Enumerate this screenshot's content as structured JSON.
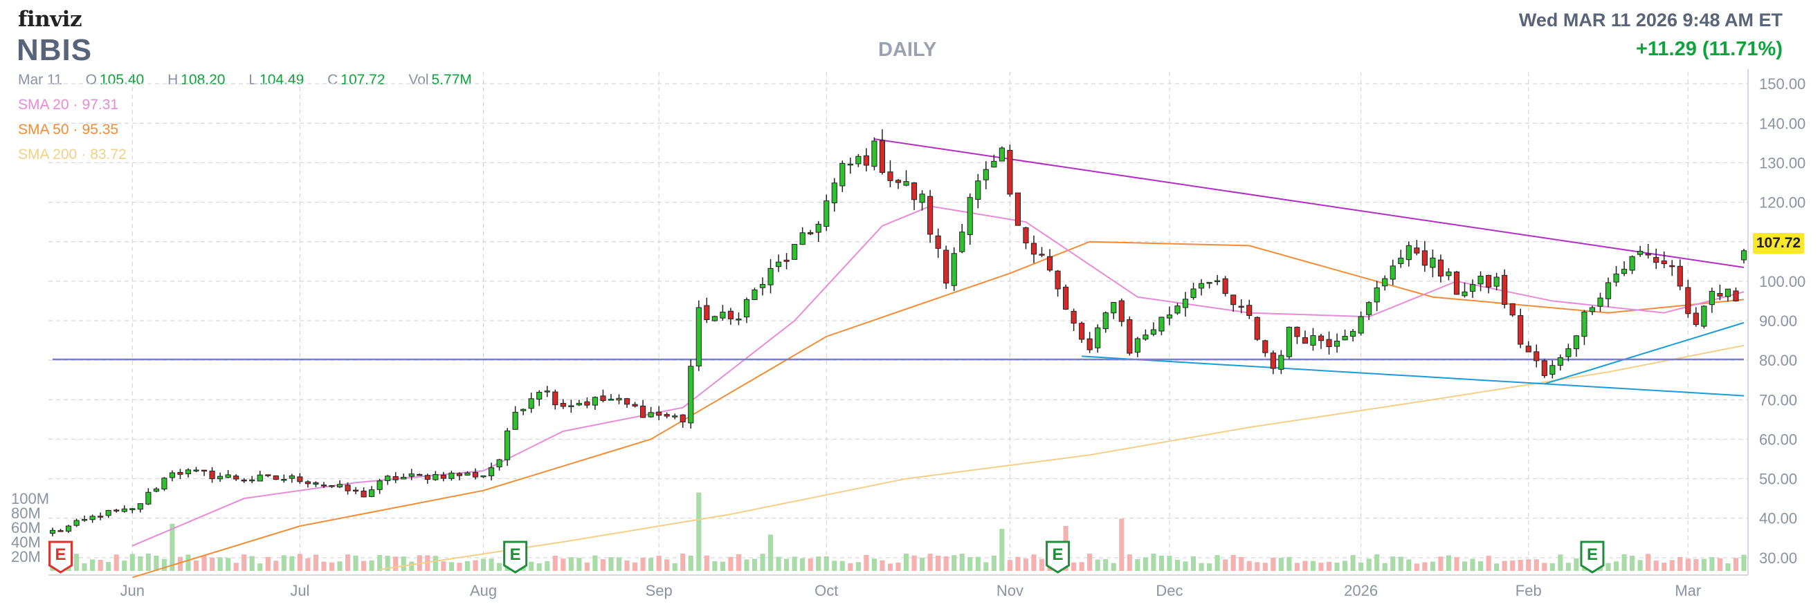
{
  "header": {
    "brand": "finviz",
    "ticker": "NBIS",
    "period": "DAILY",
    "datetime": "Wed MAR 11 2026 9:48 AM ET",
    "change": "+11.29 (11.71%)"
  },
  "ohlc": {
    "date": "Mar 11",
    "open_label": "O",
    "open": "105.40",
    "high_label": "H",
    "high": "108.20",
    "low_label": "L",
    "low": "104.49",
    "close_label": "C",
    "close": "107.72",
    "vol_label": "Vol",
    "vol": "5.77M"
  },
  "sma": [
    {
      "label": "SMA 20",
      "value": "97.31",
      "color": "#e88bd6"
    },
    {
      "label": "SMA 50",
      "value": "95.35",
      "color": "#f28c36"
    },
    {
      "label": "SMA 200",
      "value": "83.72",
      "color": "#f2d08a"
    }
  ],
  "last_price_tag": "107.72",
  "colors": {
    "up": "#2fc22f",
    "down": "#d42a2a",
    "sma20": "#e88bd6",
    "sma50": "#f28c36",
    "sma200": "#f2d08a",
    "trend_resistance": "#b22cc4",
    "trend_support": "#1a9bd7",
    "horizontal_support": "#7c7cc8",
    "vol_up": "#a9dba9",
    "vol_down": "#f5b0b0"
  },
  "icons": [
    "earnings-E-icon",
    "earnings-E-icon",
    "earnings-E-icon",
    "earnings-E-icon"
  ],
  "chart_data": {
    "type": "candlestick",
    "title": "NBIS",
    "period": "DAILY",
    "ylim": [
      27,
      153
    ],
    "y_ticks": [
      "150.00",
      "140.00",
      "130.00",
      "120.00",
      "110.00",
      "100.00",
      "90.00",
      "80.00",
      "70.00",
      "60.00",
      "50.00",
      "40.00",
      "30.00"
    ],
    "x_ticks": [
      "Jun",
      "Jul",
      "Aug",
      "Sep",
      "Oct",
      "Nov",
      "Dec",
      "2026",
      "Feb",
      "Mar"
    ],
    "volume_ticks": [
      "100M",
      "80M",
      "60M",
      "40M",
      "20M"
    ],
    "volume_max_m": 120,
    "grid": true,
    "ohlc_anchors": [
      {
        "date": "2025-05-20",
        "close": 37
      },
      {
        "date": "2025-05-27",
        "close": 41
      },
      {
        "date": "2025-06-02",
        "close": 42
      },
      {
        "date": "2025-06-09",
        "close": 52
      },
      {
        "date": "2025-06-20",
        "close": 50
      },
      {
        "date": "2025-07-01",
        "close": 50
      },
      {
        "date": "2025-07-11",
        "close": 46
      },
      {
        "date": "2025-07-16",
        "close": 50
      },
      {
        "date": "2025-07-25",
        "close": 51
      },
      {
        "date": "2025-08-01",
        "close": 51
      },
      {
        "date": "2025-08-05",
        "close": 55
      },
      {
        "date": "2025-08-07",
        "close": 67
      },
      {
        "date": "2025-08-12",
        "close": 73
      },
      {
        "date": "2025-08-15",
        "close": 69
      },
      {
        "date": "2025-08-25",
        "close": 70
      },
      {
        "date": "2025-08-29",
        "close": 67
      },
      {
        "date": "2025-09-05",
        "close": 65
      },
      {
        "date": "2025-09-09",
        "close": 92
      },
      {
        "date": "2025-09-15",
        "close": 90
      },
      {
        "date": "2025-09-22",
        "close": 102
      },
      {
        "date": "2025-09-29",
        "close": 112
      },
      {
        "date": "2025-10-03",
        "close": 128
      },
      {
        "date": "2025-10-09",
        "close": 133
      },
      {
        "date": "2025-10-13",
        "close": 127
      },
      {
        "date": "2025-10-17",
        "close": 120
      },
      {
        "date": "2025-10-22",
        "close": 100
      },
      {
        "date": "2025-10-27",
        "close": 122
      },
      {
        "date": "2025-10-31",
        "close": 131
      },
      {
        "date": "2025-11-04",
        "close": 112
      },
      {
        "date": "2025-11-07",
        "close": 108
      },
      {
        "date": "2025-11-12",
        "close": 92
      },
      {
        "date": "2025-11-17",
        "close": 82
      },
      {
        "date": "2025-11-20",
        "close": 96
      },
      {
        "date": "2025-11-24",
        "close": 83
      },
      {
        "date": "2025-12-01",
        "close": 92
      },
      {
        "date": "2025-12-05",
        "close": 101
      },
      {
        "date": "2025-12-09",
        "close": 98
      },
      {
        "date": "2025-12-15",
        "close": 90
      },
      {
        "date": "2025-12-18",
        "close": 78
      },
      {
        "date": "2025-12-22",
        "close": 87
      },
      {
        "date": "2025-12-29",
        "close": 85
      },
      {
        "date": "2026-01-02",
        "close": 90
      },
      {
        "date": "2026-01-08",
        "close": 105
      },
      {
        "date": "2026-01-13",
        "close": 108
      },
      {
        "date": "2026-01-20",
        "close": 98
      },
      {
        "date": "2026-01-27",
        "close": 100
      },
      {
        "date": "2026-01-30",
        "close": 85
      },
      {
        "date": "2026-02-04",
        "close": 76
      },
      {
        "date": "2026-02-06",
        "close": 80
      },
      {
        "date": "2026-02-12",
        "close": 95
      },
      {
        "date": "2026-02-17",
        "close": 102
      },
      {
        "date": "2026-02-20",
        "close": 107
      },
      {
        "date": "2026-02-26",
        "close": 104
      },
      {
        "date": "2026-03-03",
        "close": 87
      },
      {
        "date": "2026-03-05",
        "close": 97
      },
      {
        "date": "2026-03-10",
        "close": 96
      },
      {
        "date": "2026-03-11",
        "close": 107.72
      }
    ],
    "last_candle": {
      "date": "Mar 11",
      "open": 105.4,
      "high": 108.2,
      "low": 104.49,
      "close": 107.72,
      "volume": "5.77M"
    },
    "volume_spikes": [
      {
        "date": "2025-06-09",
        "volume_m": 65
      },
      {
        "date": "2025-09-09",
        "volume_m": 108
      },
      {
        "date": "2025-09-22",
        "volume_m": 50
      },
      {
        "date": "2025-10-31",
        "volume_m": 58
      },
      {
        "date": "2025-11-12",
        "volume_m": 62
      },
      {
        "date": "2025-11-21",
        "volume_m": 72
      }
    ],
    "sma": {
      "sma20": [
        [
          "2025-06-01",
          33
        ],
        [
          "2025-06-20",
          45
        ],
        [
          "2025-07-10",
          49
        ],
        [
          "2025-08-01",
          52
        ],
        [
          "2025-08-15",
          62
        ],
        [
          "2025-09-05",
          68
        ],
        [
          "2025-09-25",
          90
        ],
        [
          "2025-10-10",
          114
        ],
        [
          "2025-10-20",
          119
        ],
        [
          "2025-11-05",
          115
        ],
        [
          "2025-11-25",
          96
        ],
        [
          "2025-12-15",
          92
        ],
        [
          "2026-01-05",
          91
        ],
        [
          "2026-01-20",
          100
        ],
        [
          "2026-02-05",
          95
        ],
        [
          "2026-02-25",
          92
        ],
        [
          "2026-03-11",
          97.31
        ]
      ],
      "sma50": [
        [
          "2025-06-01",
          25
        ],
        [
          "2025-07-01",
          38
        ],
        [
          "2025-08-01",
          47
        ],
        [
          "2025-09-01",
          60
        ],
        [
          "2025-10-01",
          86
        ],
        [
          "2025-11-01",
          102
        ],
        [
          "2025-11-15",
          110
        ],
        [
          "2025-12-15",
          109
        ],
        [
          "2026-01-15",
          96
        ],
        [
          "2026-02-15",
          92
        ],
        [
          "2026-03-11",
          95.35
        ]
      ],
      "sma200": [
        [
          "2025-07-15",
          27
        ],
        [
          "2025-08-15",
          34
        ],
        [
          "2025-09-15",
          41
        ],
        [
          "2025-10-15",
          50
        ],
        [
          "2025-11-15",
          56
        ],
        [
          "2025-12-15",
          63
        ],
        [
          "2026-01-15",
          70
        ],
        [
          "2026-02-15",
          77
        ],
        [
          "2026-03-11",
          83.72
        ]
      ]
    },
    "trendlines": [
      {
        "name": "resistance",
        "from": [
          "2025-10-09",
          136
        ],
        "to": [
          "2026-03-11",
          103.5
        ]
      },
      {
        "name": "support-lower",
        "from": [
          "2025-11-14",
          81
        ],
        "to": [
          "2026-03-11",
          71
        ]
      },
      {
        "name": "support-rising",
        "from": [
          "2026-02-04",
          74
        ],
        "to": [
          "2026-03-11",
          89.5
        ]
      },
      {
        "name": "horizontal",
        "from": [
          "2025-05-19",
          80.2
        ],
        "to": [
          "2026-03-11",
          80.2
        ]
      }
    ],
    "earnings_markers": [
      {
        "date": "2025-05-20",
        "label": "E",
        "color": "#e0312f"
      },
      {
        "date": "2025-08-07",
        "label": "E",
        "color": "#1b8f3a"
      },
      {
        "date": "2025-11-11",
        "label": "E",
        "color": "#1b8f3a"
      },
      {
        "date": "2026-02-12",
        "label": "E",
        "color": "#1b8f3a"
      }
    ]
  }
}
